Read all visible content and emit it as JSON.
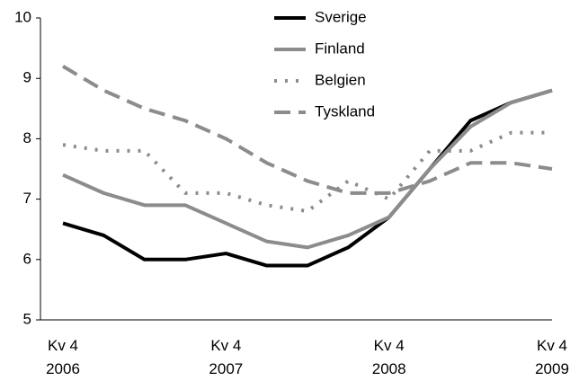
{
  "chart_data": {
    "type": "line",
    "categories": [
      "Kv 4\n2006",
      null,
      null,
      null,
      "Kv 4\n2007",
      null,
      null,
      null,
      "Kv 4\n2008",
      null,
      null,
      null,
      "Kv 4\n2009"
    ],
    "series": [
      {
        "name": "Sverige",
        "color": "#000000",
        "dash": "solid",
        "values": [
          6.6,
          6.4,
          6.0,
          6.0,
          6.1,
          5.9,
          5.9,
          6.2,
          6.7,
          7.5,
          8.3,
          8.6,
          8.8
        ]
      },
      {
        "name": "Finland",
        "color": "#8c8c8c",
        "dash": "solid",
        "values": [
          7.4,
          7.1,
          6.9,
          6.9,
          6.6,
          6.3,
          6.2,
          6.4,
          6.7,
          7.5,
          8.2,
          8.6,
          8.8
        ]
      },
      {
        "name": "Belgien",
        "color": "#8c8c8c",
        "dash": "dotted",
        "values": [
          7.9,
          7.8,
          7.8,
          7.1,
          7.1,
          6.9,
          6.8,
          7.3,
          7.0,
          7.8,
          7.8,
          8.1,
          8.1
        ]
      },
      {
        "name": "Tyskland",
        "color": "#8c8c8c",
        "dash": "dashed",
        "values": [
          9.2,
          8.8,
          8.5,
          8.3,
          8.0,
          7.6,
          7.3,
          7.1,
          7.1,
          7.3,
          7.6,
          7.6,
          7.5
        ]
      }
    ],
    "ylim": [
      5,
      10
    ],
    "yticks": [
      5,
      6,
      7,
      8,
      9,
      10
    ],
    "grid": false,
    "legend": "top-right"
  }
}
